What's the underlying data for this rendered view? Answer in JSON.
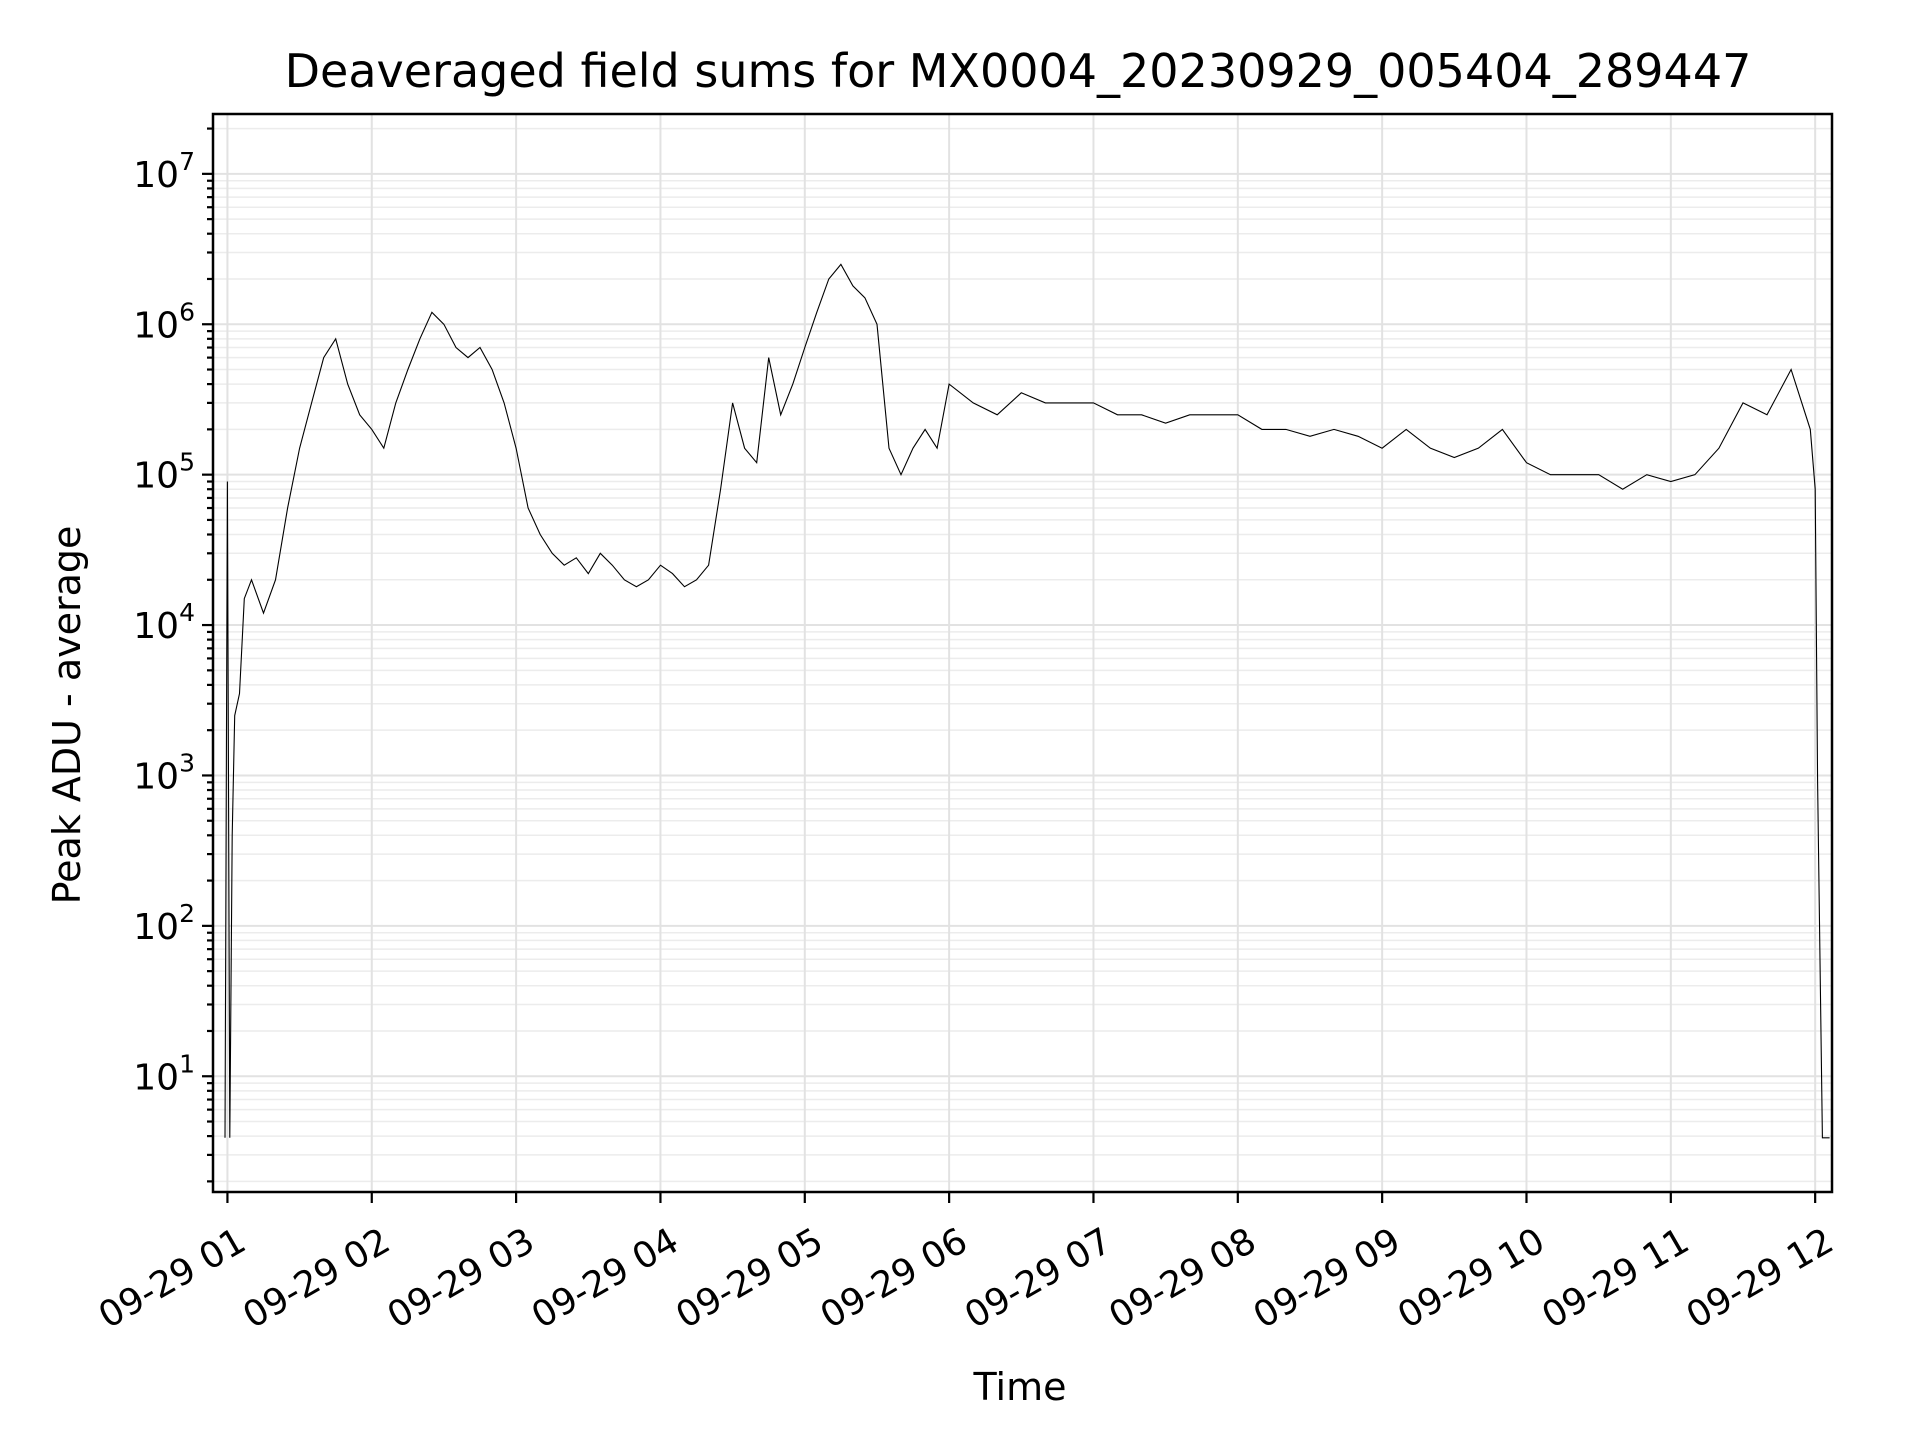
{
  "chart_data": {
    "type": "line",
    "title": "Deaveraged field sums for MX0004_20230929_005404_289447",
    "xlabel": "Time",
    "ylabel": "Peak ADU - average",
    "yscale": "log",
    "ylim": [
      1.7,
      25000000
    ],
    "xlim": [
      "2023-09-29 00:54",
      "2023-09-29 12:07"
    ],
    "grid": true,
    "x_ticks": [
      "09-29 01",
      "09-29 02",
      "09-29 03",
      "09-29 04",
      "09-29 05",
      "09-29 06",
      "09-29 07",
      "09-29 08",
      "09-29 09",
      "09-29 10",
      "09-29 11",
      "09-29 12"
    ],
    "x_tick_times": [
      "2023-09-29 01:00",
      "2023-09-29 02:00",
      "2023-09-29 03:00",
      "2023-09-29 04:00",
      "2023-09-29 05:00",
      "2023-09-29 06:00",
      "2023-09-29 07:00",
      "2023-09-29 08:00",
      "2023-09-29 09:00",
      "2023-09-29 10:00",
      "2023-09-29 11:00",
      "2023-09-29 12:00"
    ],
    "y_ticks": [
      {
        "base": "10",
        "exp": "1",
        "value": 10
      },
      {
        "base": "10",
        "exp": "2",
        "value": 100
      },
      {
        "base": "10",
        "exp": "3",
        "value": 1000
      },
      {
        "base": "10",
        "exp": "4",
        "value": 10000
      },
      {
        "base": "10",
        "exp": "5",
        "value": 100000
      },
      {
        "base": "10",
        "exp": "6",
        "value": 1000000
      },
      {
        "base": "10",
        "exp": "7",
        "value": 10000000
      }
    ],
    "series": [
      {
        "color": "#000000",
        "x": [
          "2023-09-29 00:59",
          "2023-09-29 01:00",
          "2023-09-29 01:01",
          "2023-09-29 01:02",
          "2023-09-29 01:03",
          "2023-09-29 01:05",
          "2023-09-29 01:07",
          "2023-09-29 01:10",
          "2023-09-29 01:15",
          "2023-09-29 01:20",
          "2023-09-29 01:25",
          "2023-09-29 01:30",
          "2023-09-29 01:35",
          "2023-09-29 01:40",
          "2023-09-29 01:45",
          "2023-09-29 01:50",
          "2023-09-29 01:55",
          "2023-09-29 02:00",
          "2023-09-29 02:05",
          "2023-09-29 02:10",
          "2023-09-29 02:15",
          "2023-09-29 02:20",
          "2023-09-29 02:25",
          "2023-09-29 02:30",
          "2023-09-29 02:35",
          "2023-09-29 02:40",
          "2023-09-29 02:45",
          "2023-09-29 02:50",
          "2023-09-29 02:55",
          "2023-09-29 03:00",
          "2023-09-29 03:05",
          "2023-09-29 03:10",
          "2023-09-29 03:15",
          "2023-09-29 03:20",
          "2023-09-29 03:25",
          "2023-09-29 03:30",
          "2023-09-29 03:35",
          "2023-09-29 03:40",
          "2023-09-29 03:45",
          "2023-09-29 03:50",
          "2023-09-29 03:55",
          "2023-09-29 04:00",
          "2023-09-29 04:05",
          "2023-09-29 04:10",
          "2023-09-29 04:15",
          "2023-09-29 04:20",
          "2023-09-29 04:25",
          "2023-09-29 04:30",
          "2023-09-29 04:35",
          "2023-09-29 04:40",
          "2023-09-29 04:45",
          "2023-09-29 04:50",
          "2023-09-29 04:55",
          "2023-09-29 05:00",
          "2023-09-29 05:05",
          "2023-09-29 05:10",
          "2023-09-29 05:15",
          "2023-09-29 05:20",
          "2023-09-29 05:25",
          "2023-09-29 05:30",
          "2023-09-29 05:35",
          "2023-09-29 05:40",
          "2023-09-29 05:45",
          "2023-09-29 05:50",
          "2023-09-29 05:55",
          "2023-09-29 06:00",
          "2023-09-29 06:10",
          "2023-09-29 06:20",
          "2023-09-29 06:30",
          "2023-09-29 06:40",
          "2023-09-29 06:50",
          "2023-09-29 07:00",
          "2023-09-29 07:10",
          "2023-09-29 07:20",
          "2023-09-29 07:30",
          "2023-09-29 07:40",
          "2023-09-29 07:50",
          "2023-09-29 08:00",
          "2023-09-29 08:10",
          "2023-09-29 08:20",
          "2023-09-29 08:30",
          "2023-09-29 08:40",
          "2023-09-29 08:50",
          "2023-09-29 09:00",
          "2023-09-29 09:10",
          "2023-09-29 09:20",
          "2023-09-29 09:30",
          "2023-09-29 09:40",
          "2023-09-29 09:50",
          "2023-09-29 10:00",
          "2023-09-29 10:10",
          "2023-09-29 10:20",
          "2023-09-29 10:30",
          "2023-09-29 10:40",
          "2023-09-29 10:50",
          "2023-09-29 11:00",
          "2023-09-29 11:10",
          "2023-09-29 11:20",
          "2023-09-29 11:30",
          "2023-09-29 11:40",
          "2023-09-29 11:50",
          "2023-09-29 11:58",
          "2023-09-29 12:00",
          "2023-09-29 12:01",
          "2023-09-29 12:03",
          "2023-09-29 12:05",
          "2023-09-29 12:06"
        ],
        "y": [
          3.9,
          90000,
          3.9,
          400,
          2500,
          3500,
          15000,
          20000,
          12000,
          20000,
          60000,
          150000,
          300000,
          600000,
          800000,
          400000,
          250000,
          200000,
          150000,
          300000,
          500000,
          800000,
          1200000,
          1000000,
          700000,
          600000,
          700000,
          500000,
          300000,
          150000,
          60000,
          40000,
          30000,
          25000,
          28000,
          22000,
          30000,
          25000,
          20000,
          18000,
          20000,
          25000,
          22000,
          18000,
          20000,
          25000,
          80000,
          300000,
          150000,
          120000,
          600000,
          250000,
          400000,
          700000,
          1200000,
          2000000,
          2500000,
          1800000,
          1500000,
          1000000,
          150000,
          100000,
          150000,
          200000,
          150000,
          400000,
          300000,
          250000,
          350000,
          300000,
          300000,
          300000,
          250000,
          250000,
          220000,
          250000,
          250000,
          250000,
          200000,
          200000,
          180000,
          200000,
          180000,
          150000,
          200000,
          150000,
          130000,
          150000,
          200000,
          120000,
          100000,
          100000,
          100000,
          80000,
          100000,
          90000,
          100000,
          150000,
          300000,
          250000,
          500000,
          200000,
          80000,
          900,
          3.9,
          3.9,
          3.9
        ]
      }
    ]
  }
}
